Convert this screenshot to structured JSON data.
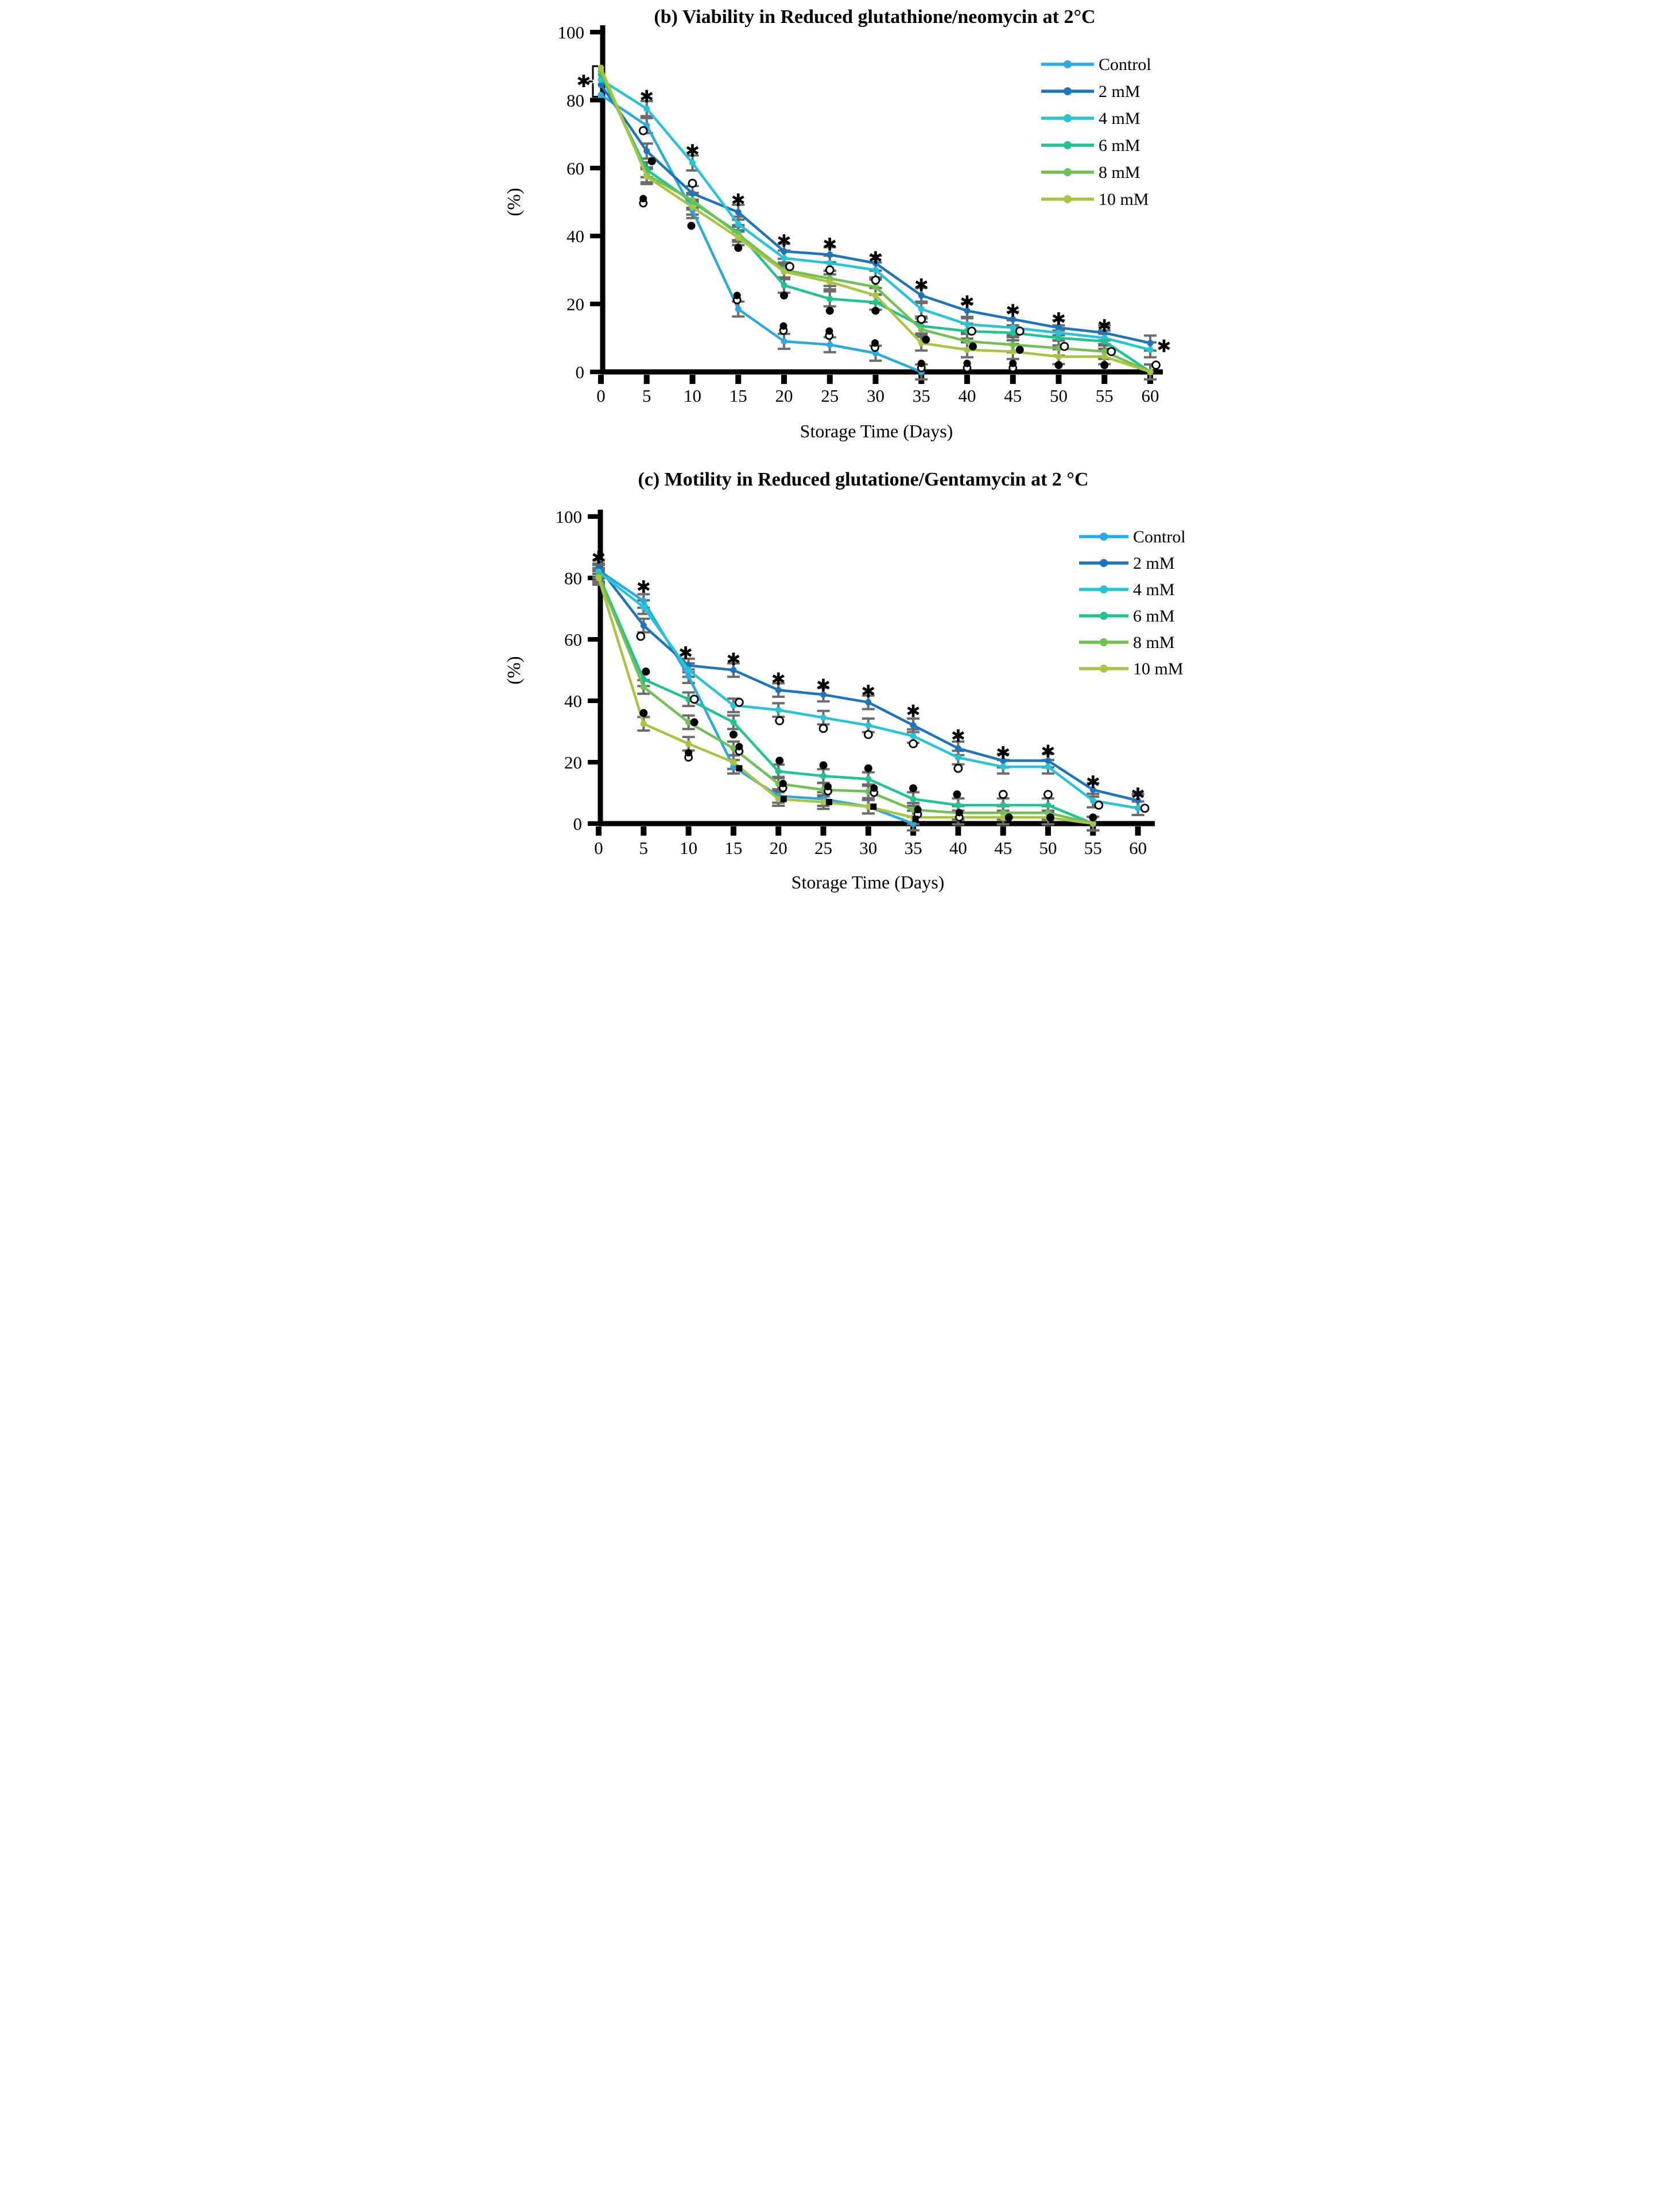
{
  "chart_data": [
    {
      "type": "line",
      "id": "b",
      "title": "(b) Viability in Reduced glutathione/neomycin at 2°C",
      "xlabel": "Storage Time (Days)",
      "ylabel": "(%)",
      "x": [
        0,
        5,
        10,
        15,
        20,
        25,
        30,
        35,
        40,
        45,
        50,
        55,
        60
      ],
      "xticks": [
        0,
        5,
        10,
        15,
        20,
        25,
        30,
        35,
        40,
        45,
        50,
        55,
        60
      ],
      "yticks": [
        0,
        20,
        40,
        60,
        80,
        100
      ],
      "ylim": [
        0,
        100
      ],
      "grid": false,
      "error_bar": 2.2,
      "legend_position": "top-right",
      "series": [
        {
          "name": "Control",
          "color": "#29ABE2",
          "values": [
            81.5,
            72.5,
            47.5,
            18.5,
            9,
            8,
            5.5,
            0,
            null,
            null,
            null,
            null,
            null
          ]
        },
        {
          "name": "2 mM",
          "color": "#1C75BC",
          "values": [
            84.5,
            65,
            52.5,
            47,
            35.5,
            34.5,
            32,
            22.5,
            18,
            15.5,
            13,
            11.5,
            8.5
          ]
        },
        {
          "name": "4 mM",
          "color": "#26C4D9",
          "values": [
            86,
            77.5,
            61.5,
            43.5,
            33.5,
            32,
            30,
            18.5,
            14,
            13,
            11.5,
            10,
            6.5
          ]
        },
        {
          "name": "6 mM",
          "color": "#1EC491",
          "values": [
            87.5,
            59.5,
            50,
            41,
            25.5,
            21.5,
            20.5,
            13.5,
            12,
            11.5,
            10,
            9,
            0
          ]
        },
        {
          "name": "8 mM",
          "color": "#70C053",
          "values": [
            88.5,
            58,
            50.5,
            40.5,
            30,
            27.5,
            25,
            12.5,
            9,
            8,
            7,
            6,
            0
          ]
        },
        {
          "name": "10 mM",
          "color": "#A9C43F",
          "values": [
            89.5,
            57.5,
            48.5,
            39.5,
            29.5,
            26.5,
            22.5,
            8.5,
            6.5,
            6,
            4.5,
            4.5,
            0
          ]
        }
      ],
      "annotations": {
        "bracket": [
          {
            "day": 0,
            "from": 81,
            "to": 90
          }
        ],
        "asterisk": [
          {
            "day": 0,
            "value": 85.5,
            "dx": -30
          },
          {
            "day": 5,
            "value": 81
          },
          {
            "day": 10,
            "value": 65
          },
          {
            "day": 15,
            "value": 50.5
          },
          {
            "day": 20,
            "value": 38.5
          },
          {
            "day": 25,
            "value": 37.5
          },
          {
            "day": 30,
            "value": 33.5
          },
          {
            "day": 35,
            "value": 25.5
          },
          {
            "day": 40,
            "value": 20.5
          },
          {
            "day": 45,
            "value": 18
          },
          {
            "day": 50,
            "value": 15.5
          },
          {
            "day": 55,
            "value": 13.5
          },
          {
            "day": 60,
            "value": 7.5,
            "dx": 24
          }
        ],
        "open_circle": [
          {
            "day": 5,
            "value": 71,
            "dx": -6
          },
          {
            "day": 10,
            "value": 55.5
          },
          {
            "day": 20,
            "value": 31,
            "dx": 10
          },
          {
            "day": 25,
            "value": 30
          },
          {
            "day": 30,
            "value": 27
          },
          {
            "day": 35,
            "value": 15.5
          },
          {
            "day": 40,
            "value": 12,
            "dx": 8
          },
          {
            "day": 45,
            "value": 12,
            "dx": 12
          },
          {
            "day": 50,
            "value": 7.5,
            "dx": 10
          },
          {
            "day": 55,
            "value": 6,
            "dx": 12
          },
          {
            "day": 60,
            "value": 2,
            "dx": 10
          }
        ],
        "filled_dot": [
          {
            "day": 5,
            "value": 62,
            "dx": 9
          },
          {
            "day": 10,
            "value": 43,
            "dx": -2
          },
          {
            "day": 15,
            "value": 36.5
          },
          {
            "day": 20,
            "value": 22.5
          },
          {
            "day": 25,
            "value": 18
          },
          {
            "day": 30,
            "value": 18
          },
          {
            "day": 35,
            "value": 9.5,
            "dx": 8
          },
          {
            "day": 40,
            "value": 7.5,
            "dx": 10
          },
          {
            "day": 45,
            "value": 6.5,
            "dx": 12
          },
          {
            "day": 50,
            "value": 2
          },
          {
            "day": 55,
            "value": 2
          }
        ],
        "dot_over_circle": [
          {
            "day": 5,
            "value": 50.5,
            "dx": -6
          },
          {
            "day": 15,
            "value": 22,
            "dx": -2
          },
          {
            "day": 20,
            "value": 13,
            "dx": -1
          },
          {
            "day": 25,
            "value": 11.5,
            "dx": -1
          },
          {
            "day": 30,
            "value": 8,
            "dx": -1
          },
          {
            "day": 35,
            "value": 2
          },
          {
            "day": 40,
            "value": 2
          },
          {
            "day": 45,
            "value": 2
          }
        ],
        "filled_square": []
      }
    },
    {
      "type": "line",
      "id": "c",
      "title": "(c) Motility in Reduced glutatione/Gentamycin at 2 °C",
      "xlabel": "Storage Time (Days)",
      "ylabel": "(%)",
      "x": [
        0,
        5,
        10,
        15,
        20,
        25,
        30,
        35,
        40,
        45,
        50,
        55,
        60
      ],
      "xticks": [
        0,
        5,
        10,
        15,
        20,
        25,
        30,
        35,
        40,
        45,
        50,
        55,
        60
      ],
      "yticks": [
        0,
        20,
        40,
        60,
        80,
        100
      ],
      "ylim": [
        0,
        100
      ],
      "grid": false,
      "error_bar": 2.2,
      "legend_position": "top-right",
      "series": [
        {
          "name": "Control",
          "color": "#29ABE2",
          "values": [
            82.5,
            72.5,
            48,
            18.5,
            9,
            8,
            5.5,
            0,
            null,
            null,
            null,
            null,
            null
          ]
        },
        {
          "name": "2 mM",
          "color": "#1C75BC",
          "values": [
            83.5,
            64.5,
            51.5,
            50,
            43.5,
            42,
            39.5,
            32,
            24.5,
            20.5,
            20.5,
            11,
            7.5
          ]
        },
        {
          "name": "4 mM",
          "color": "#26C4D9",
          "values": [
            82,
            70.5,
            50,
            38.5,
            37,
            34.5,
            32,
            28.5,
            21.5,
            18.5,
            18.5,
            7.5,
            5
          ]
        },
        {
          "name": "6 mM",
          "color": "#1EC491",
          "values": [
            81,
            47,
            40.5,
            33,
            17,
            15.5,
            14.5,
            8,
            6,
            6,
            6,
            0,
            null
          ]
        },
        {
          "name": "8 mM",
          "color": "#70C053",
          "values": [
            80.5,
            44.5,
            33,
            24.5,
            13,
            11,
            10.5,
            4.5,
            3.5,
            3.5,
            3.5,
            0,
            null
          ]
        },
        {
          "name": "10 mM",
          "color": "#A9C43F",
          "values": [
            80,
            32.5,
            26,
            20,
            8,
            7,
            5.5,
            2,
            2,
            2,
            2,
            0,
            null
          ]
        }
      ],
      "annotations": {
        "bracket": [],
        "asterisk": [
          {
            "day": 0,
            "value": 86.5
          },
          {
            "day": 5,
            "value": 77
          },
          {
            "day": 10,
            "value": 55.5,
            "dx": -5
          },
          {
            "day": 15,
            "value": 53.5
          },
          {
            "day": 20,
            "value": 47
          },
          {
            "day": 25,
            "value": 45
          },
          {
            "day": 30,
            "value": 43
          },
          {
            "day": 35,
            "value": 36.5
          },
          {
            "day": 40,
            "value": 28.5
          },
          {
            "day": 45,
            "value": 23
          },
          {
            "day": 50,
            "value": 23.5
          },
          {
            "day": 55,
            "value": 13.5
          },
          {
            "day": 60,
            "value": 9.5
          }
        ],
        "open_circle": [
          {
            "day": 5,
            "value": 61,
            "dx": -5
          },
          {
            "day": 10,
            "value": 40.5,
            "dx": 10
          },
          {
            "day": 15,
            "value": 39.5,
            "dx": 10
          },
          {
            "day": 20,
            "value": 33.5,
            "dx": 2
          },
          {
            "day": 25,
            "value": 31
          },
          {
            "day": 30,
            "value": 29
          },
          {
            "day": 35,
            "value": 26
          },
          {
            "day": 40,
            "value": 18
          },
          {
            "day": 45,
            "value": 9.5
          },
          {
            "day": 50,
            "value": 9.5
          },
          {
            "day": 55,
            "value": 6,
            "dx": 10
          },
          {
            "day": 60,
            "value": 5,
            "dx": 12
          }
        ],
        "filled_dot": [
          {
            "day": 5,
            "value": 49.5,
            "dx": 4
          },
          {
            "day": 5,
            "value": 36
          },
          {
            "day": 10,
            "value": 33,
            "dx": 10
          },
          {
            "day": 15,
            "value": 29
          },
          {
            "day": 20,
            "value": 20.5,
            "dx": 2
          },
          {
            "day": 25,
            "value": 19
          },
          {
            "day": 30,
            "value": 18
          },
          {
            "day": 35,
            "value": 11.5
          },
          {
            "day": 40,
            "value": 9.5,
            "dx": -2
          },
          {
            "day": 45,
            "value": 2,
            "dx": 10
          },
          {
            "day": 50,
            "value": 2,
            "dx": 4
          },
          {
            "day": 55,
            "value": 2
          }
        ],
        "dot_over_circle": [
          {
            "day": 10,
            "value": 22.5
          },
          {
            "day": 15,
            "value": 24.5,
            "dx": 10
          },
          {
            "day": 20,
            "value": 12.5,
            "dx": 8
          },
          {
            "day": 25,
            "value": 11.5,
            "dx": 8
          },
          {
            "day": 30,
            "value": 11,
            "dx": 10
          },
          {
            "day": 35,
            "value": 4,
            "dx": 8
          },
          {
            "day": 40,
            "value": 3,
            "dx": 2
          }
        ],
        "filled_square": [
          {
            "day": 15,
            "value": 18,
            "dx": 10
          },
          {
            "day": 20,
            "value": 8,
            "dx": 9
          },
          {
            "day": 25,
            "value": 7,
            "dx": 10
          },
          {
            "day": 30,
            "value": 5.5,
            "dx": 9
          },
          {
            "day": 35,
            "value": 1.5,
            "dx": 4
          }
        ]
      }
    }
  ],
  "style_colors": {
    "error_bar": "#6B6B6B",
    "axis": "#000000",
    "annotation": "#000000"
  }
}
